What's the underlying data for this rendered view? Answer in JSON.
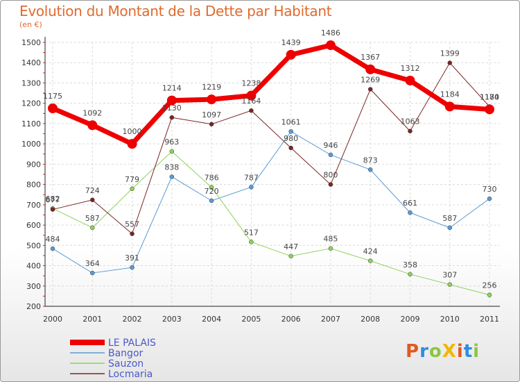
{
  "header": {
    "title": "Evolution du Montant de la Dette par Habitant",
    "subtitle": "(en €)"
  },
  "logo": {
    "text": "ProXiti",
    "colors": [
      "#e05a1f",
      "#2b8ee0",
      "#8cc63f",
      "#f2b600",
      "#e05a1f",
      "#2b8ee0",
      "#8cc63f"
    ]
  },
  "chart_data": {
    "type": "line",
    "title": "Evolution du Montant de la Dette par Habitant",
    "ylabel": "(en €)",
    "ylim": [
      200,
      1500
    ],
    "yticks": [
      200,
      300,
      400,
      500,
      600,
      700,
      800,
      900,
      1000,
      1100,
      1200,
      1300,
      1400,
      1500
    ],
    "x": [
      "2000",
      "2001",
      "2002",
      "2003",
      "2004",
      "2005",
      "2006",
      "2007",
      "2008",
      "2009",
      "2010",
      "2011"
    ],
    "legend_position": "bottom-left",
    "series": [
      {
        "name": "LE PALAIS",
        "color": "#ee0000",
        "width": 7,
        "labelled": true,
        "values": [
          1175,
          1092,
          1000,
          1214,
          1219,
          1238,
          1439,
          1486,
          1367,
          1312,
          1184,
          1170
        ]
      },
      {
        "name": "Bangor",
        "color": "#5a9bd5",
        "width": 1,
        "labelled": true,
        "values": [
          484,
          364,
          391,
          838,
          720,
          787,
          1061,
          946,
          873,
          661,
          587,
          730
        ]
      },
      {
        "name": "Sauzon",
        "color": "#8ed25a",
        "width": 1,
        "labelled": true,
        "values": [
          682,
          587,
          779,
          963,
          786,
          517,
          447,
          485,
          424,
          358,
          307,
          256
        ]
      },
      {
        "name": "Locmaria",
        "color": "#7a2525",
        "width": 1,
        "labelled": true,
        "values": [
          677,
          724,
          557,
          1130,
          1097,
          1164,
          980,
          800,
          1269,
          1063,
          1399,
          1184
        ]
      }
    ]
  }
}
